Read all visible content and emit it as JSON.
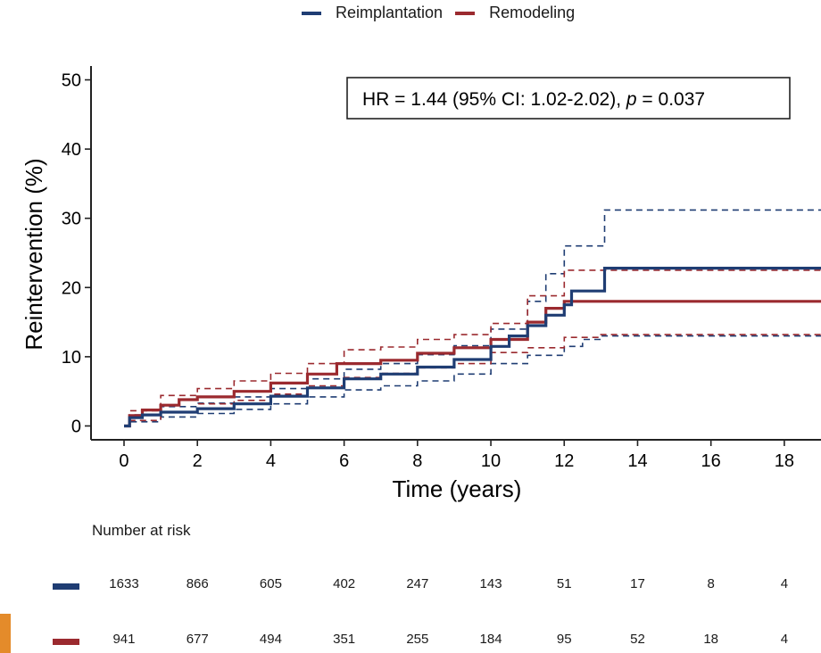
{
  "legend": {
    "items": [
      {
        "label": "Reimplantation",
        "color": "#1f3d73"
      },
      {
        "label": "Remodeling",
        "color": "#9b2a2f"
      }
    ]
  },
  "colors": {
    "reimplantation": "#1f3d73",
    "remodeling": "#9b2a2f",
    "accent_tab": "#e48b2a"
  },
  "annotation": {
    "hr_text": "HR = 1.44 (95% CI: 1.02-2.02), ",
    "p_label": "p",
    "p_text": " = 0.037"
  },
  "risk_table": {
    "title": "Number at risk",
    "reimplantation": [
      "1633",
      "866",
      "605",
      "402",
      "247",
      "143",
      "51",
      "17",
      "8",
      "4"
    ],
    "remodeling": [
      "941",
      "677",
      "494",
      "351",
      "255",
      "184",
      "95",
      "52",
      "18",
      "4"
    ]
  },
  "chart_data": {
    "type": "line",
    "xlabel": "Time (years)",
    "ylabel": "Reintervention (%)",
    "xlim": [
      -0.9,
      19
    ],
    "ylim": [
      -2,
      52
    ],
    "xticks": [
      0,
      2,
      4,
      6,
      8,
      10,
      12,
      14,
      16,
      18
    ],
    "yticks": [
      0,
      10,
      20,
      30,
      40,
      50
    ],
    "grid": false,
    "legend_position": "top",
    "series": [
      {
        "name": "Reimplantation",
        "color": "#1f3d73",
        "estimate": [
          [
            0,
            0
          ],
          [
            0.15,
            1.2
          ],
          [
            0.5,
            1.6
          ],
          [
            1,
            2
          ],
          [
            2,
            2.5
          ],
          [
            3,
            3.2
          ],
          [
            4,
            4.3
          ],
          [
            5,
            5.5
          ],
          [
            6,
            6.8
          ],
          [
            7,
            7.5
          ],
          [
            8,
            8.5
          ],
          [
            9,
            9.6
          ],
          [
            10,
            11.5
          ],
          [
            10.5,
            13
          ],
          [
            11,
            14.5
          ],
          [
            11.5,
            16
          ],
          [
            12,
            17.5
          ],
          [
            12.2,
            19.5
          ],
          [
            13,
            19.5
          ],
          [
            13.1,
            22.8
          ],
          [
            19,
            22.8
          ]
        ],
        "ci_lower": [
          [
            0,
            0
          ],
          [
            0.15,
            0.6
          ],
          [
            1,
            1.3
          ],
          [
            2,
            1.8
          ],
          [
            3,
            2.4
          ],
          [
            4,
            3.2
          ],
          [
            5,
            4.2
          ],
          [
            6,
            5.2
          ],
          [
            7,
            5.8
          ],
          [
            8,
            6.5
          ],
          [
            9,
            7.5
          ],
          [
            10,
            9
          ],
          [
            11,
            10.2
          ],
          [
            12,
            11.5
          ],
          [
            12.5,
            12.5
          ],
          [
            13,
            13
          ],
          [
            19,
            13
          ]
        ],
        "ci_upper": [
          [
            0,
            0
          ],
          [
            0.15,
            1.6
          ],
          [
            1,
            2.8
          ],
          [
            2,
            3.3
          ],
          [
            3,
            4.2
          ],
          [
            4,
            5.4
          ],
          [
            5,
            6.8
          ],
          [
            6,
            8.2
          ],
          [
            7,
            9
          ],
          [
            8,
            10.3
          ],
          [
            9,
            11.6
          ],
          [
            10,
            14
          ],
          [
            11,
            18
          ],
          [
            11.5,
            22
          ],
          [
            12,
            26
          ],
          [
            13,
            26
          ],
          [
            13.1,
            31.2
          ],
          [
            19,
            31.2
          ]
        ]
      },
      {
        "name": "Remodeling",
        "color": "#9b2a2f",
        "estimate": [
          [
            0,
            0
          ],
          [
            0.15,
            1.5
          ],
          [
            0.5,
            2.3
          ],
          [
            1,
            3
          ],
          [
            1.5,
            3.8
          ],
          [
            2,
            4.2
          ],
          [
            3,
            5
          ],
          [
            4,
            6.2
          ],
          [
            5,
            7.5
          ],
          [
            5.8,
            9
          ],
          [
            7,
            9.5
          ],
          [
            8,
            10.5
          ],
          [
            9,
            11.3
          ],
          [
            10,
            12.5
          ],
          [
            11,
            15
          ],
          [
            11.5,
            17
          ],
          [
            12,
            18
          ],
          [
            19,
            18
          ]
        ],
        "ci_lower": [
          [
            0,
            0
          ],
          [
            0.15,
            0.8
          ],
          [
            1,
            2
          ],
          [
            2,
            3.2
          ],
          [
            3,
            3.7
          ],
          [
            4,
            4.6
          ],
          [
            5,
            5.8
          ],
          [
            6,
            7
          ],
          [
            7,
            7.6
          ],
          [
            8,
            8.4
          ],
          [
            9,
            9
          ],
          [
            10,
            10.6
          ],
          [
            11,
            11.3
          ],
          [
            12,
            12.8
          ],
          [
            13,
            13.2
          ],
          [
            19,
            13.2
          ]
        ],
        "ci_upper": [
          [
            0,
            0
          ],
          [
            0.15,
            2.2
          ],
          [
            1,
            4.4
          ],
          [
            2,
            5.4
          ],
          [
            3,
            6.5
          ],
          [
            4,
            7.6
          ],
          [
            5,
            9
          ],
          [
            6,
            11
          ],
          [
            7,
            11.4
          ],
          [
            8,
            12.5
          ],
          [
            9,
            13.2
          ],
          [
            10,
            14.8
          ],
          [
            11,
            18.8
          ],
          [
            12,
            22.5
          ],
          [
            19,
            22.5
          ]
        ]
      }
    ]
  }
}
